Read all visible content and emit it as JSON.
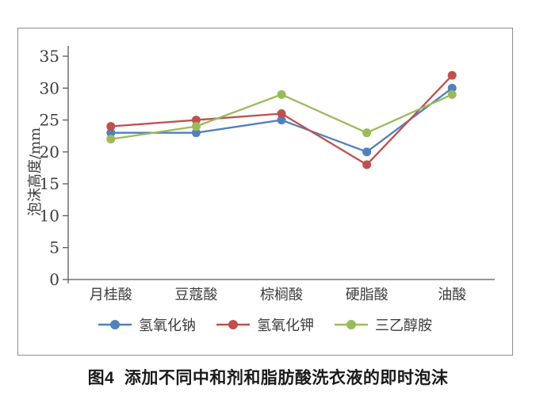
{
  "chart_data": {
    "type": "line",
    "title": "",
    "categories": [
      "月桂酸",
      "豆蔻酸",
      "棕榈酸",
      "硬脂酸",
      "油酸"
    ],
    "series": [
      {
        "name": "氢氧化钠",
        "color": "#4F81BD",
        "values": [
          23,
          23,
          25,
          20,
          30
        ]
      },
      {
        "name": "氢氧化钾",
        "color": "#C0504D",
        "values": [
          24,
          25,
          26,
          18,
          32
        ]
      },
      {
        "name": "三乙醇胺",
        "color": "#9BBB59",
        "values": [
          22,
          24,
          29,
          23,
          29
        ]
      }
    ],
    "xlabel": "",
    "ylabel": "泡沫高度/mm",
    "ylim": [
      0,
      35
    ],
    "yticks": [
      0,
      5,
      10,
      15,
      20,
      25,
      30,
      35
    ],
    "grid": false,
    "legend_position": "bottom",
    "marker": "circle"
  },
  "caption": "图4  添加不同中和剂和脂肪酸洗衣液的即时泡沫",
  "style": {
    "axis_color": "#595959",
    "text_color": "#3d3d3d",
    "frame_border_color": "#8c8c8c",
    "line_width": 2.3,
    "marker_radius": 5.5
  }
}
